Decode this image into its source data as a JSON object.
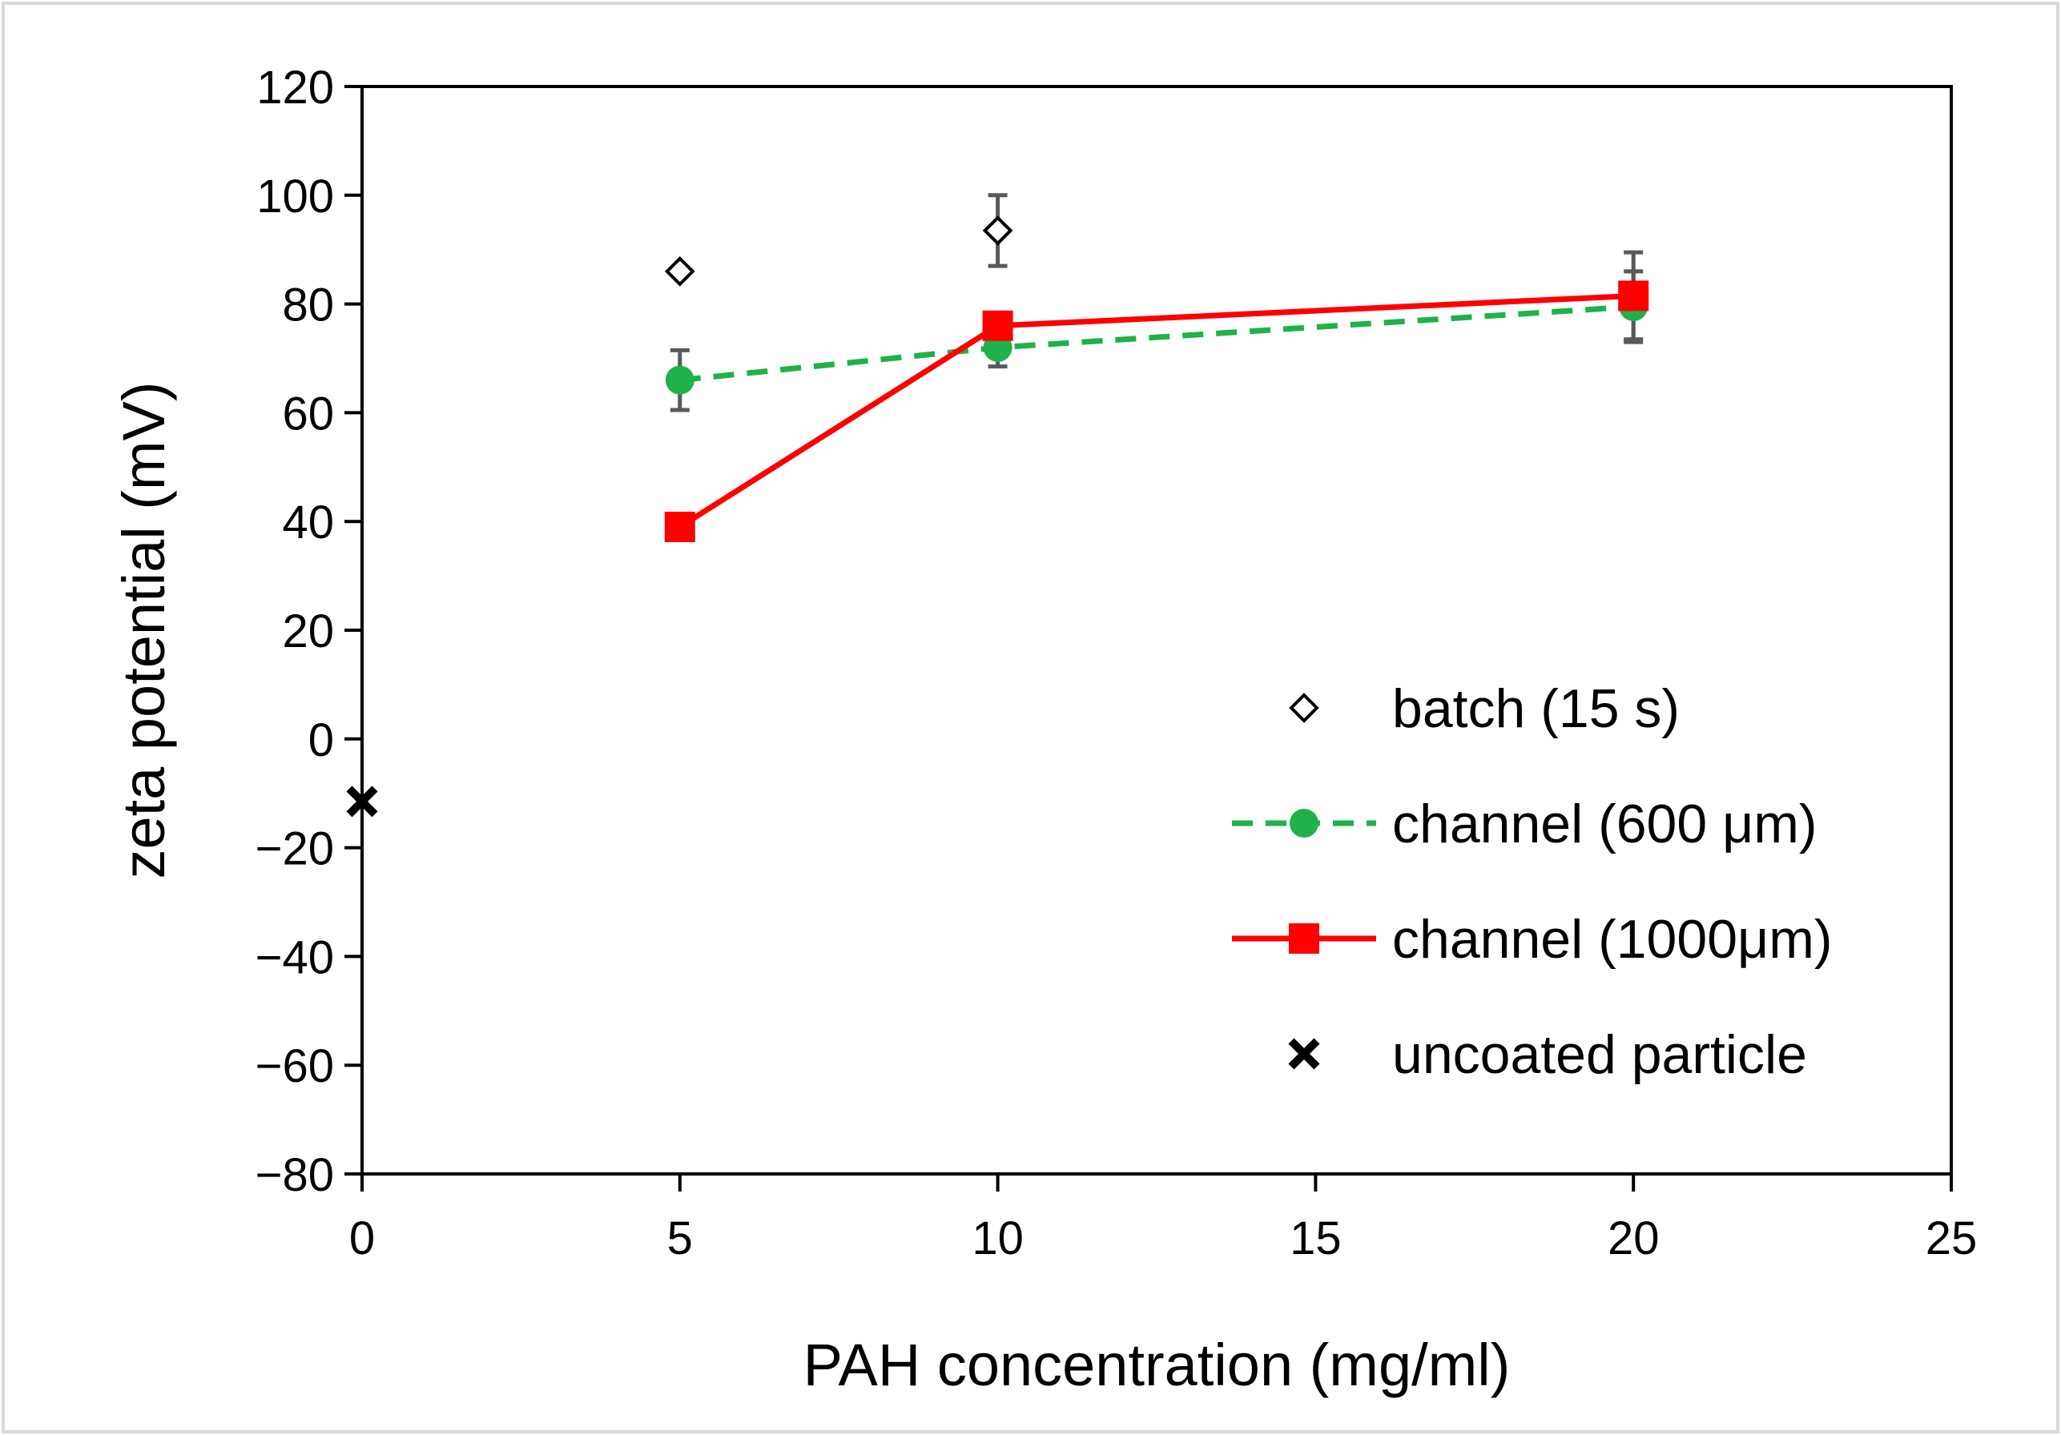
{
  "chart_data": {
    "type": "scatter",
    "title": "",
    "xlabel": "PAH concentration (mg/ml)",
    "ylabel": "zeta potential (mV)",
    "xlim": [
      0,
      25
    ],
    "ylim": [
      -80,
      120
    ],
    "xticks": [
      0,
      5,
      10,
      15,
      20,
      25
    ],
    "yticks": [
      -80,
      -60,
      -40,
      -20,
      0,
      20,
      40,
      60,
      80,
      100,
      120
    ],
    "xtick_labels": [
      "0",
      "5",
      "10",
      "15",
      "20",
      "25"
    ],
    "ytick_labels": [
      "−80",
      "−60",
      "−40",
      "−20",
      "0",
      "20",
      "40",
      "60",
      "80",
      "100",
      "120"
    ],
    "grid": false,
    "legend_position": "bottom-right",
    "series": [
      {
        "name": "batch (15 s)",
        "marker": "diamond-open",
        "line": "none",
        "color": "#000000",
        "x": [
          5,
          10
        ],
        "y": [
          86,
          93.5
        ],
        "err": [
          0.5,
          6.5
        ]
      },
      {
        "name": "channel (600 μm)",
        "marker": "circle",
        "line": "dashed",
        "color": "#1fb14a",
        "x": [
          5,
          10,
          20
        ],
        "y": [
          66,
          72,
          79.5
        ],
        "err": [
          5.5,
          3.5,
          6.5
        ]
      },
      {
        "name": "channel (1000μm)",
        "marker": "square",
        "line": "solid",
        "color": "#ff0000",
        "x": [
          5,
          10,
          20
        ],
        "y": [
          39,
          76,
          81.5
        ],
        "err": [
          0,
          0,
          8
        ]
      },
      {
        "name": "uncoated particle",
        "marker": "x",
        "line": "none",
        "color": "#000000",
        "x": [
          0
        ],
        "y": [
          -11.5
        ],
        "err": [
          0
        ]
      }
    ]
  }
}
